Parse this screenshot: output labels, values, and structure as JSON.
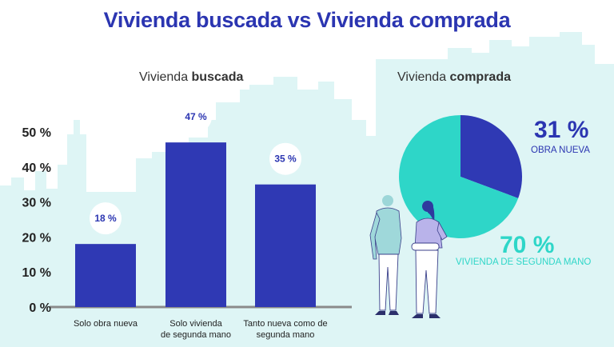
{
  "title": "Vivienda buscada vs Vivienda comprada",
  "colors": {
    "bar": "#2f39b4",
    "pie_new": "#2f39b4",
    "pie_used": "#2ed6c8",
    "title": "#2b35b1",
    "skyline": "#def5f5"
  },
  "chart_data": [
    {
      "type": "bar",
      "title_prefix": "Vivienda ",
      "title_bold": "buscada",
      "categories": [
        "Solo obra nueva",
        "Solo vivienda de segunda mano",
        "Tanto nueva como de segunda mano"
      ],
      "category_lines": [
        [
          "Solo obra nueva"
        ],
        [
          "Solo vivienda",
          "de segunda mano"
        ],
        [
          "Tanto nueva como de",
          "segunda mano"
        ]
      ],
      "values": [
        18,
        47,
        35
      ],
      "value_labels": [
        "18 %",
        "47 %",
        "35 %"
      ],
      "ylim": [
        0,
        50
      ],
      "yticks": [
        0,
        10,
        20,
        30,
        40,
        50
      ],
      "ytick_labels": [
        "0 %",
        "10 %",
        "20 %",
        "30 %",
        "40 %",
        "50 %"
      ],
      "xlabel": "",
      "ylabel": ""
    },
    {
      "type": "pie",
      "title_prefix": "Vivienda ",
      "title_bold": "comprada",
      "slices": [
        {
          "label": "OBRA NUEVA",
          "value": 31,
          "value_label": "31 %"
        },
        {
          "label": "VIVIENDA DE SEGUNDA MANO",
          "value": 70,
          "value_label": "70 %"
        }
      ]
    }
  ]
}
